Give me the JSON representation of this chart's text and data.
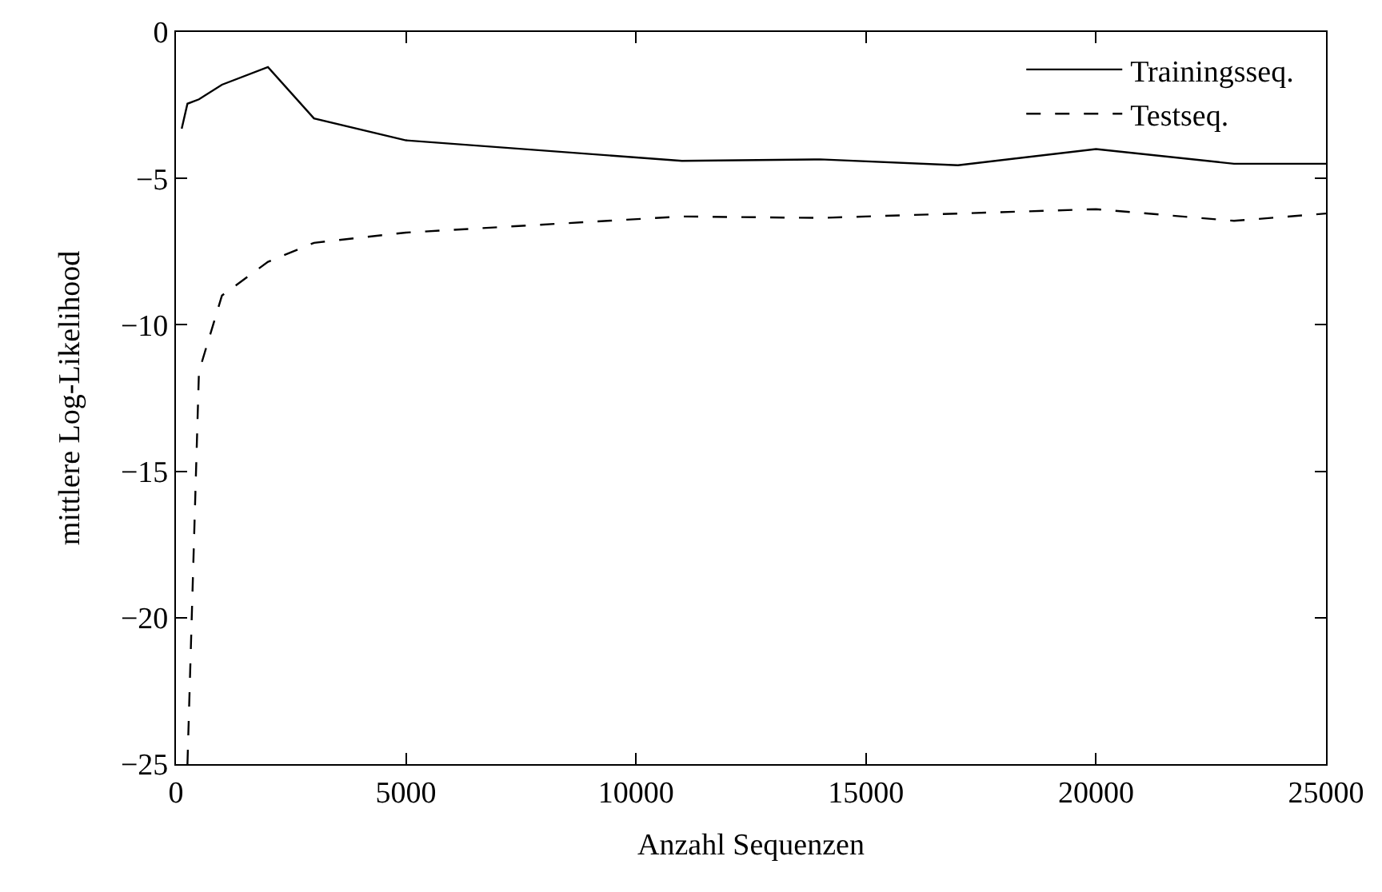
{
  "chart_data": {
    "type": "line",
    "xlabel": "Anzahl Sequenzen",
    "ylabel": "mittlere Log-Likelihood",
    "series": [
      {
        "name": "Trainingsseq.",
        "color": "#000000",
        "line_style": "solid",
        "x": [
          125,
          250,
          500,
          1000,
          2000,
          3000,
          5000,
          11000,
          14000,
          17000,
          20000,
          23000,
          25000
        ],
        "values": [
          -3.3,
          -2.45,
          -2.3,
          -1.8,
          -1.2,
          -2.95,
          -3.7,
          -4.4,
          -4.35,
          -4.55,
          -4.0,
          -4.5,
          -4.5
        ]
      },
      {
        "name": "Testseq.",
        "color": "#000000",
        "line_style": "dashed",
        "x": [
          250,
          500,
          1000,
          2000,
          3000,
          5000,
          11000,
          14000,
          17000,
          20000,
          23000,
          25000
        ],
        "values": [
          -25,
          -11.6,
          -9.0,
          -7.85,
          -7.2,
          -6.85,
          -6.3,
          -6.35,
          -6.2,
          -6.05,
          -6.45,
          -6.2
        ]
      }
    ],
    "xlim": [
      0,
      25000
    ],
    "xticks": [
      0,
      5000,
      10000,
      15000,
      20000,
      25000
    ],
    "ylim": [
      -25,
      0
    ],
    "yticks": [
      -25,
      -20,
      -15,
      -10,
      -5,
      0
    ],
    "grid": false,
    "legend": "top right",
    "marker": "none"
  }
}
